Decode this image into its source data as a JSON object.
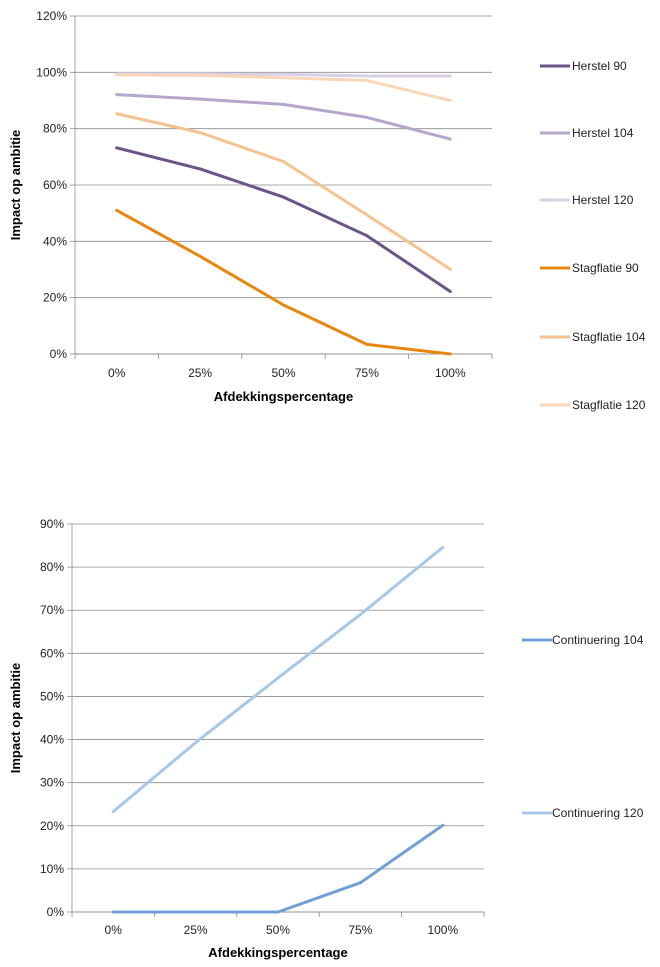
{
  "chart_data": [
    {
      "type": "line",
      "xlabel": "Afdekkingspercentage",
      "ylabel": "Impact op ambitie",
      "categories": [
        "0%",
        "25%",
        "50%",
        "75%",
        "100%"
      ],
      "ylim": [
        0,
        120
      ],
      "yticks": [
        0,
        20,
        40,
        60,
        80,
        100,
        120
      ],
      "ytick_labels": [
        "0%",
        "20%",
        "40%",
        "60%",
        "80%",
        "100%",
        "120%"
      ],
      "grid": true,
      "legend_position": "right",
      "series": [
        {
          "name": "Herstel 90",
          "color": "#6b5488",
          "values": [
            73.2,
            65.7,
            55.7,
            42,
            22.2
          ]
        },
        {
          "name": "Herstel 104",
          "color": "#b7a6cc",
          "values": [
            92.1,
            90.5,
            88.6,
            84,
            76.3
          ]
        },
        {
          "name": "Herstel 120",
          "color": "#d8d0e6",
          "values": [
            99.5,
            99.5,
            99.3,
            98.7,
            98.7
          ]
        },
        {
          "name": "Stagflatie 90",
          "color": "#e8870e",
          "values": [
            51,
            34.7,
            17.4,
            3.4,
            0
          ]
        },
        {
          "name": "Stagflatie 104",
          "color": "#f6c291",
          "values": [
            85.3,
            78.6,
            68.3,
            49.4,
            30.1
          ]
        },
        {
          "name": "Stagflatie 120",
          "color": "#f9d6b8",
          "values": [
            99.1,
            98.9,
            98.1,
            97.1,
            90
          ]
        }
      ]
    },
    {
      "type": "line",
      "xlabel": "Afdekkingspercentage",
      "ylabel": "Impact op ambitie",
      "categories": [
        "0%",
        "25%",
        "50%",
        "75%",
        "100%"
      ],
      "ylim": [
        0,
        90
      ],
      "yticks": [
        0,
        10,
        20,
        30,
        40,
        50,
        60,
        70,
        80,
        90
      ],
      "ytick_labels": [
        "0%",
        "10%",
        "20%",
        "30%",
        "40%",
        "50%",
        "60%",
        "70%",
        "80%",
        "90%"
      ],
      "grid": true,
      "legend_position": "right",
      "series": [
        {
          "name": "Continuering 104",
          "color": "#6f9fd4",
          "values": [
            0,
            0,
            0,
            6.8,
            20.1
          ]
        },
        {
          "name": "Continuering 120",
          "color": "#a8c6e6",
          "values": [
            23.3,
            39.3,
            54.3,
            69,
            84.6
          ]
        }
      ]
    }
  ]
}
